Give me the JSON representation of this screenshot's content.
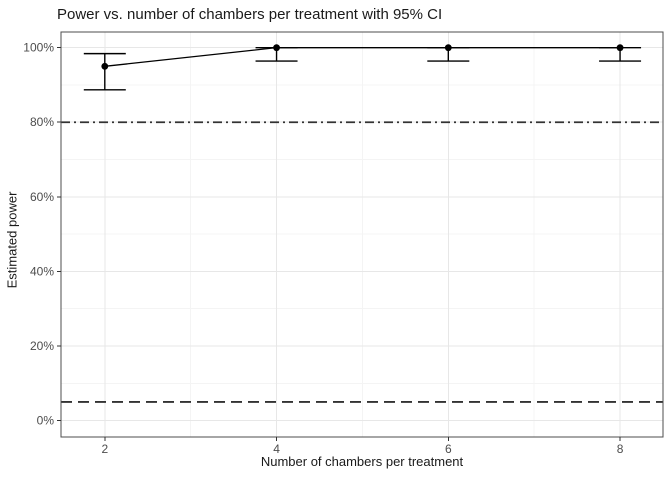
{
  "chart_data": {
    "type": "line",
    "title": "Power vs. number of chambers per treatment with 95% CI",
    "xlabel": "Number of chambers per treatment",
    "ylabel": "Estimated power",
    "x": [
      2,
      4,
      6,
      8
    ],
    "series": [
      {
        "name": "Estimated power with 95% CI",
        "values": [
          0.95,
          1.0,
          1.0,
          1.0
        ],
        "ci_low": [
          0.887,
          0.964,
          0.964,
          0.964
        ],
        "ci_high": [
          0.984,
          1.0,
          1.0,
          1.0
        ]
      }
    ],
    "x_ticks": {
      "values": [
        2,
        4,
        6,
        8
      ],
      "labels": [
        "2",
        "4",
        "6",
        "8"
      ],
      "minor": [
        3,
        5,
        7
      ]
    },
    "y_ticks": {
      "values": [
        0,
        0.2,
        0.4,
        0.6,
        0.8,
        1.0
      ],
      "labels": [
        "0%",
        "20%",
        "40%",
        "60%",
        "80%",
        "100%"
      ],
      "minor": [
        0.1,
        0.3,
        0.5,
        0.7,
        0.9
      ]
    },
    "xlim": [
      1.49,
      8.5
    ],
    "ylim": [
      -0.044,
      1.042
    ],
    "reference_lines": [
      {
        "value": 0.8,
        "linetype": "dotdash"
      },
      {
        "value": 0.05,
        "linetype": "dashed"
      }
    ],
    "grid": "major+minor",
    "legend_position": "none",
    "background": "#ffffff",
    "point_color": "#000000",
    "line_color": "#000000",
    "refline_color": "#333333",
    "panel_border_color": "#4d4d4d",
    "grid_major_color": "#e7e7e7",
    "grid_minor_color": "#f4f4f4",
    "tick_mark_color": "#333333",
    "tick_label_color": "#4d4d4d",
    "text_color": "#1a1a1a"
  }
}
